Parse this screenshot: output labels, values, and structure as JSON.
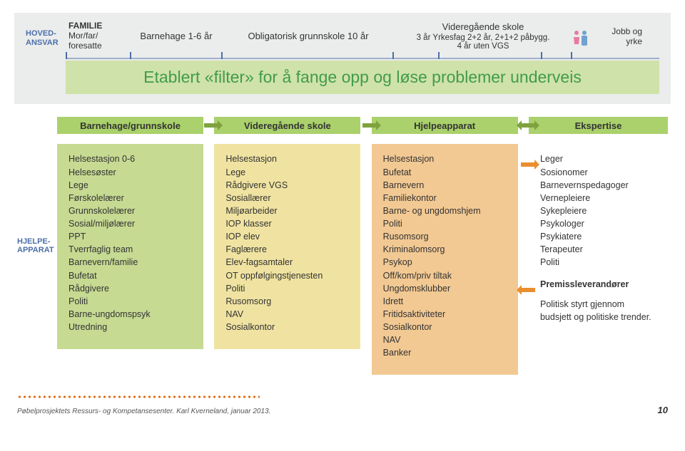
{
  "labels": {
    "hovedansvar": "HOVED-\nANSVAR",
    "hjelpeapparat": "HJELPE-\nAPPARAT"
  },
  "timeline": {
    "familie": {
      "upper": "FAMILIE",
      "lower": "Mor/far/\nforesatte"
    },
    "barnehage": "Barnehage 1-6 år",
    "grunnskole": "Obligatorisk grunnskole 10 år",
    "vgs": {
      "line1": "Videregående skole",
      "line2": "3 år Yrkesfag 2+2 år, 2+1+2 påbygg.",
      "line3": "4 år uten VGS"
    },
    "jobb": "Jobb og yrke",
    "track_color": "#9fb0cb",
    "tick_color": "#4b6fa9"
  },
  "banner": "Etablert «filter» for å fange opp og løse problemer underveis",
  "banner_bg": "#cfe2a9",
  "banner_fg": "#419c48",
  "columns": [
    {
      "heading": "Barnehage/grunnskole",
      "heading_bg": "#aad16b",
      "body_bg": "#c6da92",
      "items": [
        "Helsestasjon 0-6",
        "Helsesøster",
        "Lege",
        "Førskolelærer",
        "Grunnskolelærer",
        "Sosial/miljølærer",
        "PPT",
        "Tverrfaglig team",
        "Barnevern/familie",
        "Bufetat",
        "Rådgivere",
        "Politi",
        "Barne-ungdomspsyk",
        "Utredning"
      ]
    },
    {
      "heading": "Videregående skole",
      "heading_bg": "#aad16b",
      "body_bg": "#f0e3a1",
      "items": [
        "Helsestasjon",
        "Lege",
        "Rådgivere VGS",
        "Sosiallærer",
        "Miljøarbeider",
        "IOP klasser",
        "IOP elev",
        "Faglærere",
        "Elev-fagsamtaler",
        "OT oppfølgingstjenesten",
        "Politi",
        "Rusomsorg",
        "NAV",
        "Sosialkontor"
      ]
    },
    {
      "heading": "Hjelpeapparat",
      "heading_bg": "#aad16b",
      "body_bg": "#f2c993",
      "items": [
        "Helsestasjon",
        "Bufetat",
        "Barnevern",
        "Familiekontor",
        "Barne- og ungdomshjem",
        "Politi",
        "Rusomsorg",
        "Kriminalomsorg",
        "Psykop",
        "Off/kom/priv tiltak",
        "Ungdomsklubber",
        "Idrett",
        "Fritidsaktiviteter",
        "Sosialkontor",
        "NAV",
        "Banker"
      ]
    },
    {
      "heading": "Ekspertise",
      "heading_bg": "#aad16b",
      "body_bg": "#ffffff",
      "items": [
        "Leger",
        "Sosionomer",
        "Barnevernspedagoger",
        "Vernepleiere",
        "Sykepleiere",
        "Psykologer",
        "Psykiatere",
        "Terapeuter",
        "Politi"
      ],
      "premiss": "Premissleverandører",
      "trailing": "Politisk styrt gjennom budsjett og politiske trender."
    }
  ],
  "connector_color": "#7fa23f",
  "orange_arrow_color": "#e98f2f",
  "footer": {
    "credit": "Pøbelprosjektets Ressurs- og Kompetansesenter. Karl Kverneland, januar 2013.",
    "page": "10",
    "dot_color": "#e1680f"
  },
  "people_icon_colors": {
    "female": "#e77aa1",
    "male": "#6fa2cf"
  }
}
